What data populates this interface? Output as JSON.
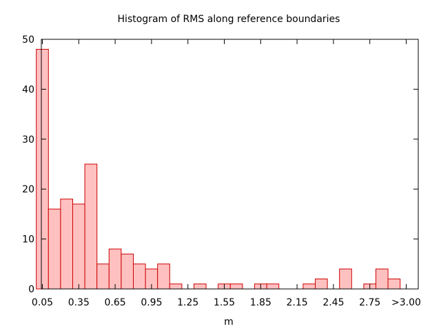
{
  "chart_data": {
    "type": "bar",
    "title": "Histogram of RMS along reference boundaries",
    "xlabel": "m",
    "ylabel": "",
    "ylim": [
      0,
      50
    ],
    "yticks": [
      0,
      10,
      20,
      30,
      40,
      50
    ],
    "x_tick_labels": [
      "0.05",
      "0.35",
      "0.65",
      "0.95",
      "1.25",
      "1.55",
      "1.85",
      "2.15",
      "2.45",
      "2.75",
      ">3.00"
    ],
    "bin_centers": [
      0.05,
      0.15,
      0.25,
      0.35,
      0.45,
      0.55,
      0.65,
      0.75,
      0.85,
      0.95,
      1.05,
      1.15,
      1.25,
      1.35,
      1.45,
      1.55,
      1.65,
      1.75,
      1.85,
      1.95,
      2.05,
      2.15,
      2.25,
      2.35,
      2.45,
      2.55,
      2.65,
      2.75,
      2.85,
      2.95,
      3.05
    ],
    "values": [
      48,
      16,
      18,
      17,
      25,
      5,
      8,
      7,
      5,
      4,
      5,
      1,
      0,
      1,
      0,
      1,
      1,
      0,
      1,
      1,
      0,
      0,
      1,
      2,
      0,
      4,
      0,
      1,
      4,
      2,
      0
    ],
    "grid": false,
    "bar_fill": "#ffc0c0",
    "bar_stroke": "#cc0000"
  }
}
